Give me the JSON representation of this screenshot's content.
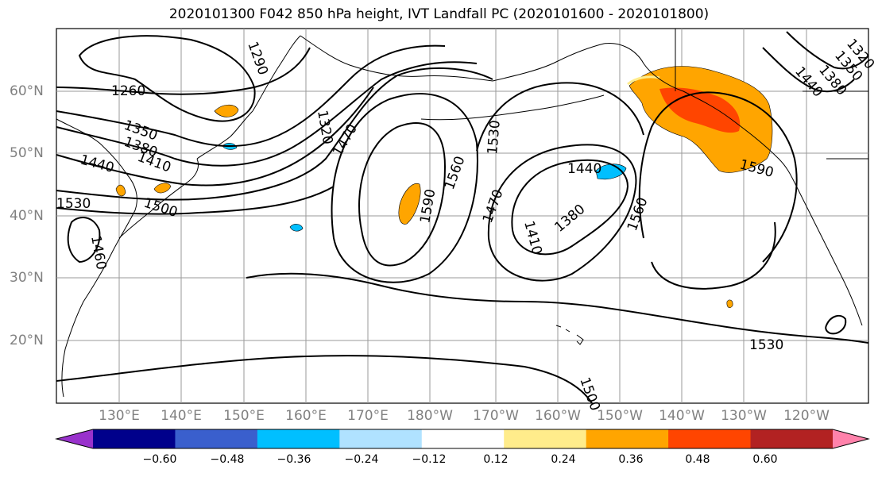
{
  "title": "2020101300 F042 850 hPa height, IVT Landfall PC (2020101600 - 2020101800)",
  "map": {
    "lon_labels": [
      "130°E",
      "140°E",
      "150°E",
      "160°E",
      "170°E",
      "180°W",
      "170°W",
      "160°W",
      "150°W",
      "140°W",
      "130°W",
      "120°W"
    ],
    "lat_labels": [
      "60°N",
      "50°N",
      "40°N",
      "30°N",
      "20°N"
    ],
    "contour_labels": [
      "1260",
      "1290",
      "1320",
      "1350",
      "1380",
      "1410",
      "1440",
      "1470",
      "1500",
      "1530",
      "1560",
      "1590",
      "1530",
      "1560",
      "1470",
      "1440",
      "1410",
      "1380",
      "1440",
      "1530",
      "1560",
      "1590",
      "1500",
      "1460",
      "1410",
      "1380",
      "1350",
      "1320"
    ],
    "colors": {
      "coast": "#000000",
      "grid": "#9a9a9a",
      "contour": "#000000"
    }
  },
  "colorbar": {
    "colors": [
      "#9932CC",
      "#00008B",
      "#3A5FCD",
      "#00BFFF",
      "#B0E2FF",
      "#FFFFFF",
      "#FFEC8B",
      "#FFA500",
      "#FF4500",
      "#B22222",
      "#FF82AB"
    ],
    "tick_labels": [
      "−0.60",
      "−0.48",
      "−0.36",
      "−0.24",
      "−0.12",
      "0.12",
      "0.24",
      "0.36",
      "0.48",
      "0.60"
    ]
  }
}
